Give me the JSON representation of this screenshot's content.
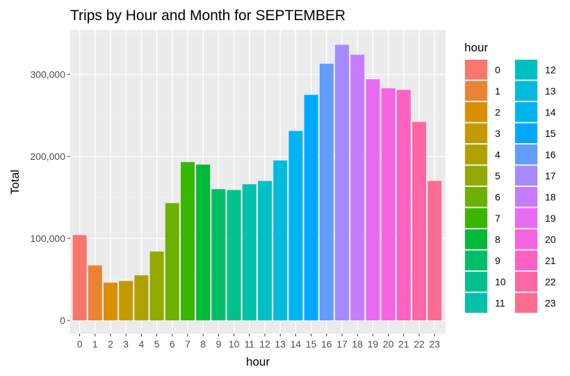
{
  "chart_data": {
    "type": "bar",
    "title": "Trips by Hour and Month for SEPTEMBER",
    "xlabel": "hour",
    "ylabel": "Total",
    "categories": [
      "0",
      "1",
      "2",
      "3",
      "4",
      "5",
      "6",
      "7",
      "8",
      "9",
      "10",
      "11",
      "12",
      "13",
      "14",
      "15",
      "16",
      "17",
      "18",
      "19",
      "20",
      "21",
      "22",
      "23"
    ],
    "values": [
      104000,
      67000,
      46000,
      48000,
      55000,
      84000,
      143000,
      193000,
      190000,
      160000,
      159000,
      166000,
      170000,
      195000,
      231000,
      275000,
      313000,
      336000,
      324000,
      294000,
      283000,
      281000,
      242000,
      170000
    ],
    "colors": [
      "#F8766D",
      "#EB8335",
      "#DA8F00",
      "#C49A00",
      "#AFA200",
      "#93AA00",
      "#6BB100",
      "#39B600",
      "#00BA38",
      "#00BE67",
      "#00C08B",
      "#00C1A9",
      "#00BFC4",
      "#00BBDC",
      "#00B4F0",
      "#00A9FF",
      "#619CFF",
      "#A58AFF",
      "#C77CFF",
      "#E76BF3",
      "#F564E3",
      "#FF61C3",
      "#FF67A4",
      "#FF6C91"
    ],
    "yticks": [
      0,
      100000,
      200000,
      300000
    ],
    "ytick_labels": [
      "0",
      "100,000",
      "200,000",
      "300,000"
    ],
    "ylim": [
      0,
      353000
    ],
    "grid": true,
    "legend": {
      "title": "hour",
      "position": "right"
    }
  }
}
